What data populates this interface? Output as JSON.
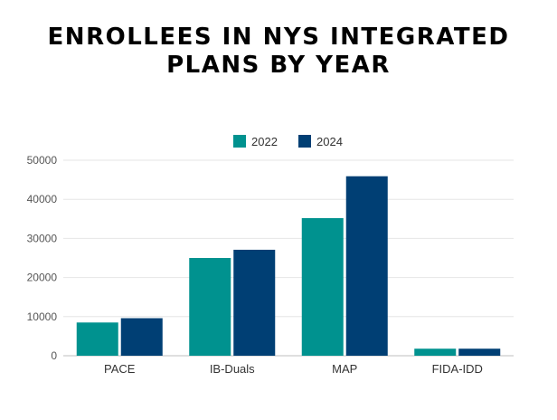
{
  "title_lines": [
    "ENROLLEES IN NYS INTEGRATED",
    "PLANS BY YEAR"
  ],
  "chart_data": {
    "type": "bar",
    "title": "ENROLLEES IN NYS INTEGRATED PLANS BY YEAR",
    "categories": [
      "PACE",
      "IB-Duals",
      "MAP",
      "FIDA-IDD"
    ],
    "series": [
      {
        "name": "2022",
        "color": "#00928f",
        "values": [
          8500,
          25000,
          35200,
          1800
        ]
      },
      {
        "name": "2024",
        "color": "#003f74",
        "values": [
          9600,
          27100,
          45900,
          1800
        ]
      }
    ],
    "yticks": [
      0,
      10000,
      20000,
      30000,
      40000,
      50000
    ],
    "ylim": [
      0,
      50000
    ],
    "xlabel": "",
    "ylabel": "",
    "grid": true,
    "legend": "top-center"
  }
}
